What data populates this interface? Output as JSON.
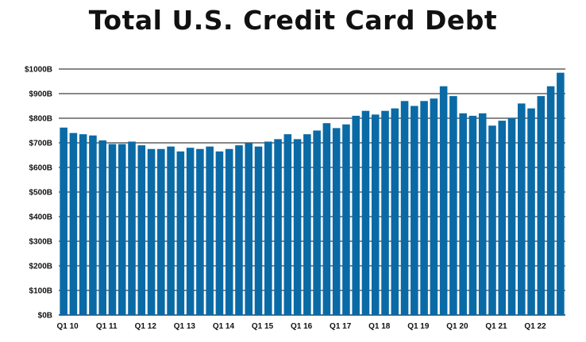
{
  "chart_data": {
    "type": "bar",
    "title": "Total U.S. Credit Card Debt",
    "xlabel": "",
    "ylabel": "",
    "ylim": [
      0,
      1000
    ],
    "y_ticks": [
      "$0B",
      "$100B",
      "$200B",
      "$300B",
      "$400B",
      "$500B",
      "$600B",
      "$700B",
      "$800B",
      "$900B",
      "$1000B"
    ],
    "y_tick_values": [
      0,
      100,
      200,
      300,
      400,
      500,
      600,
      700,
      800,
      900,
      1000
    ],
    "x_tick_labels": [
      "Q1 10",
      "Q1 11",
      "Q1 12",
      "Q1 13",
      "Q1 14",
      "Q1 15",
      "Q1 16",
      "Q1 17",
      "Q1 18",
      "Q1 19",
      "Q1 20",
      "Q1 21",
      "Q1 22"
    ],
    "x_tick_indices": [
      0,
      4,
      8,
      12,
      16,
      20,
      24,
      28,
      32,
      36,
      40,
      44,
      48
    ],
    "grid": "horizontal",
    "bar_color": "#0a6aa6",
    "categories": [
      "Q1 10",
      "Q2 10",
      "Q3 10",
      "Q4 10",
      "Q1 11",
      "Q2 11",
      "Q3 11",
      "Q4 11",
      "Q1 12",
      "Q2 12",
      "Q3 12",
      "Q4 12",
      "Q1 13",
      "Q2 13",
      "Q3 13",
      "Q4 13",
      "Q1 14",
      "Q2 14",
      "Q3 14",
      "Q4 14",
      "Q1 15",
      "Q2 15",
      "Q3 15",
      "Q4 15",
      "Q1 16",
      "Q2 16",
      "Q3 16",
      "Q4 16",
      "Q1 17",
      "Q2 17",
      "Q3 17",
      "Q4 17",
      "Q1 18",
      "Q2 18",
      "Q3 18",
      "Q4 18",
      "Q1 19",
      "Q2 19",
      "Q3 19",
      "Q4 19",
      "Q1 20",
      "Q2 20",
      "Q3 20",
      "Q4 20",
      "Q1 21",
      "Q2 21",
      "Q3 21",
      "Q4 21",
      "Q1 22",
      "Q2 22",
      "Q3 22",
      "Q4 22"
    ],
    "values": [
      762,
      740,
      735,
      730,
      710,
      695,
      695,
      705,
      690,
      675,
      675,
      685,
      665,
      680,
      675,
      685,
      665,
      675,
      690,
      700,
      685,
      705,
      715,
      735,
      715,
      735,
      750,
      780,
      760,
      775,
      810,
      830,
      815,
      830,
      840,
      870,
      850,
      870,
      880,
      930,
      890,
      820,
      810,
      820,
      770,
      790,
      800,
      860,
      840,
      890,
      930,
      985
    ]
  }
}
